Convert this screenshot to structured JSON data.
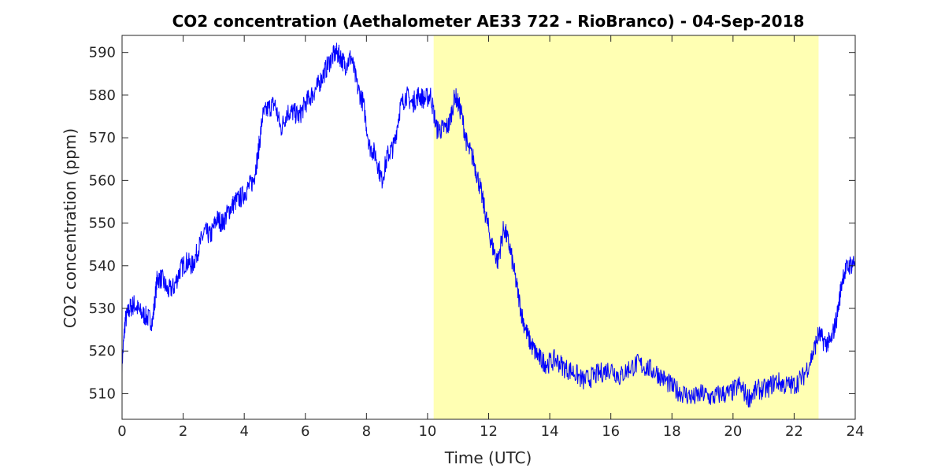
{
  "chart_data": {
    "type": "line",
    "title": "CO2 concentration (Aethalometer AE33 722 - RioBranco) - 04-Sep-2018",
    "xlabel": "Time (UTC)",
    "ylabel": "CO2 concentration (ppm)",
    "xlim": [
      0,
      24
    ],
    "ylim": [
      504,
      594
    ],
    "xticks": [
      0,
      2,
      4,
      6,
      8,
      10,
      12,
      14,
      16,
      18,
      20,
      22,
      24
    ],
    "yticks": [
      510,
      520,
      530,
      540,
      550,
      560,
      570,
      580,
      590
    ],
    "grid": false,
    "shaded_interval": {
      "x": [
        10.2,
        22.8
      ],
      "color": "#ffffb3"
    },
    "series": [
      {
        "color": "#0000ff",
        "x": [
          0.0,
          0.1,
          0.25,
          0.4,
          0.6,
          0.8,
          1.0,
          1.15,
          1.3,
          1.5,
          1.7,
          1.9,
          2.1,
          2.3,
          2.5,
          2.7,
          2.9,
          3.1,
          3.3,
          3.5,
          3.7,
          3.9,
          4.1,
          4.3,
          4.45,
          4.6,
          4.8,
          5.0,
          5.2,
          5.4,
          5.6,
          5.8,
          6.0,
          6.2,
          6.4,
          6.6,
          6.8,
          7.0,
          7.15,
          7.3,
          7.5,
          7.7,
          7.9,
          8.1,
          8.3,
          8.5,
          8.7,
          8.9,
          9.1,
          9.3,
          9.5,
          9.7,
          9.9,
          10.1,
          10.3,
          10.5,
          10.7,
          10.9,
          11.1,
          11.3,
          11.5,
          11.7,
          11.9,
          12.1,
          12.3,
          12.5,
          12.7,
          12.9,
          13.1,
          13.3,
          13.5,
          13.7,
          13.9,
          14.2,
          14.5,
          14.8,
          15.1,
          15.4,
          15.7,
          16.0,
          16.3,
          16.6,
          16.9,
          17.2,
          17.5,
          17.8,
          18.1,
          18.4,
          18.7,
          19.0,
          19.3,
          19.6,
          19.9,
          20.2,
          20.5,
          20.8,
          21.1,
          21.4,
          21.7,
          22.0,
          22.3,
          22.6,
          22.8,
          23.0,
          23.2,
          23.4,
          23.6,
          23.8,
          24.0
        ],
        "values": [
          517,
          527,
          530,
          531,
          529,
          528,
          527,
          537,
          537,
          534,
          535,
          539,
          541,
          540,
          544,
          548,
          547,
          551,
          550,
          553,
          555,
          556,
          558,
          560,
          566,
          575,
          577,
          578,
          572,
          576,
          576,
          575,
          578,
          580,
          582,
          585,
          588,
          590,
          589,
          587,
          589,
          582,
          578,
          568,
          566,
          560,
          566,
          568,
          577,
          580,
          578,
          580,
          579,
          580,
          572,
          572,
          573,
          580,
          576,
          568,
          565,
          559,
          552,
          545,
          541,
          549,
          544,
          536,
          528,
          523,
          520,
          518,
          517,
          518,
          516,
          515,
          513,
          514,
          515,
          516,
          514,
          516,
          517,
          516,
          515,
          513,
          511,
          510,
          509,
          510,
          509,
          510,
          510,
          512,
          509,
          511,
          511,
          513,
          512,
          512,
          514,
          519,
          524,
          522,
          522,
          528,
          538,
          540,
          541
        ]
      }
    ]
  }
}
